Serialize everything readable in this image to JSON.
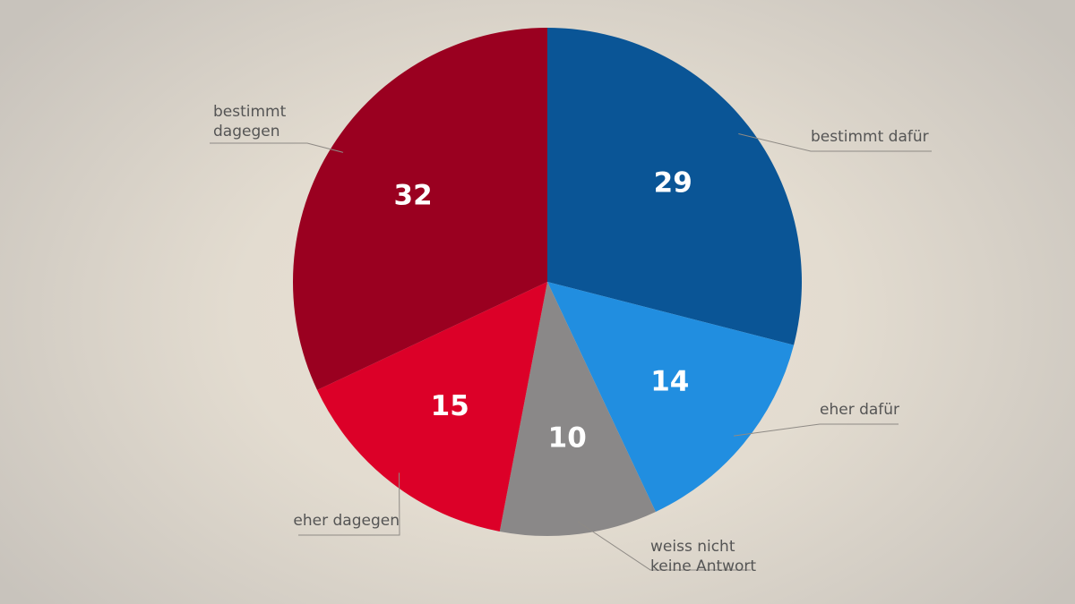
{
  "chart_data": {
    "type": "pie",
    "title": "",
    "start": "top",
    "direction": "clockwise",
    "slices": [
      {
        "label": [
          "bestimmt dafür"
        ],
        "value": 29,
        "color": "#0a5596"
      },
      {
        "label": [
          "eher dafür"
        ],
        "value": 14,
        "color": "#218ee0"
      },
      {
        "label": [
          "weiss nicht",
          "keine Antwort"
        ],
        "value": 10,
        "color": "#8a8888"
      },
      {
        "label": [
          "eher dagegen"
        ],
        "value": 15,
        "color": "#dc0028"
      },
      {
        "label": [
          "bestimmt",
          "dagegen"
        ],
        "value": 32,
        "color": "#9a0020"
      }
    ]
  }
}
